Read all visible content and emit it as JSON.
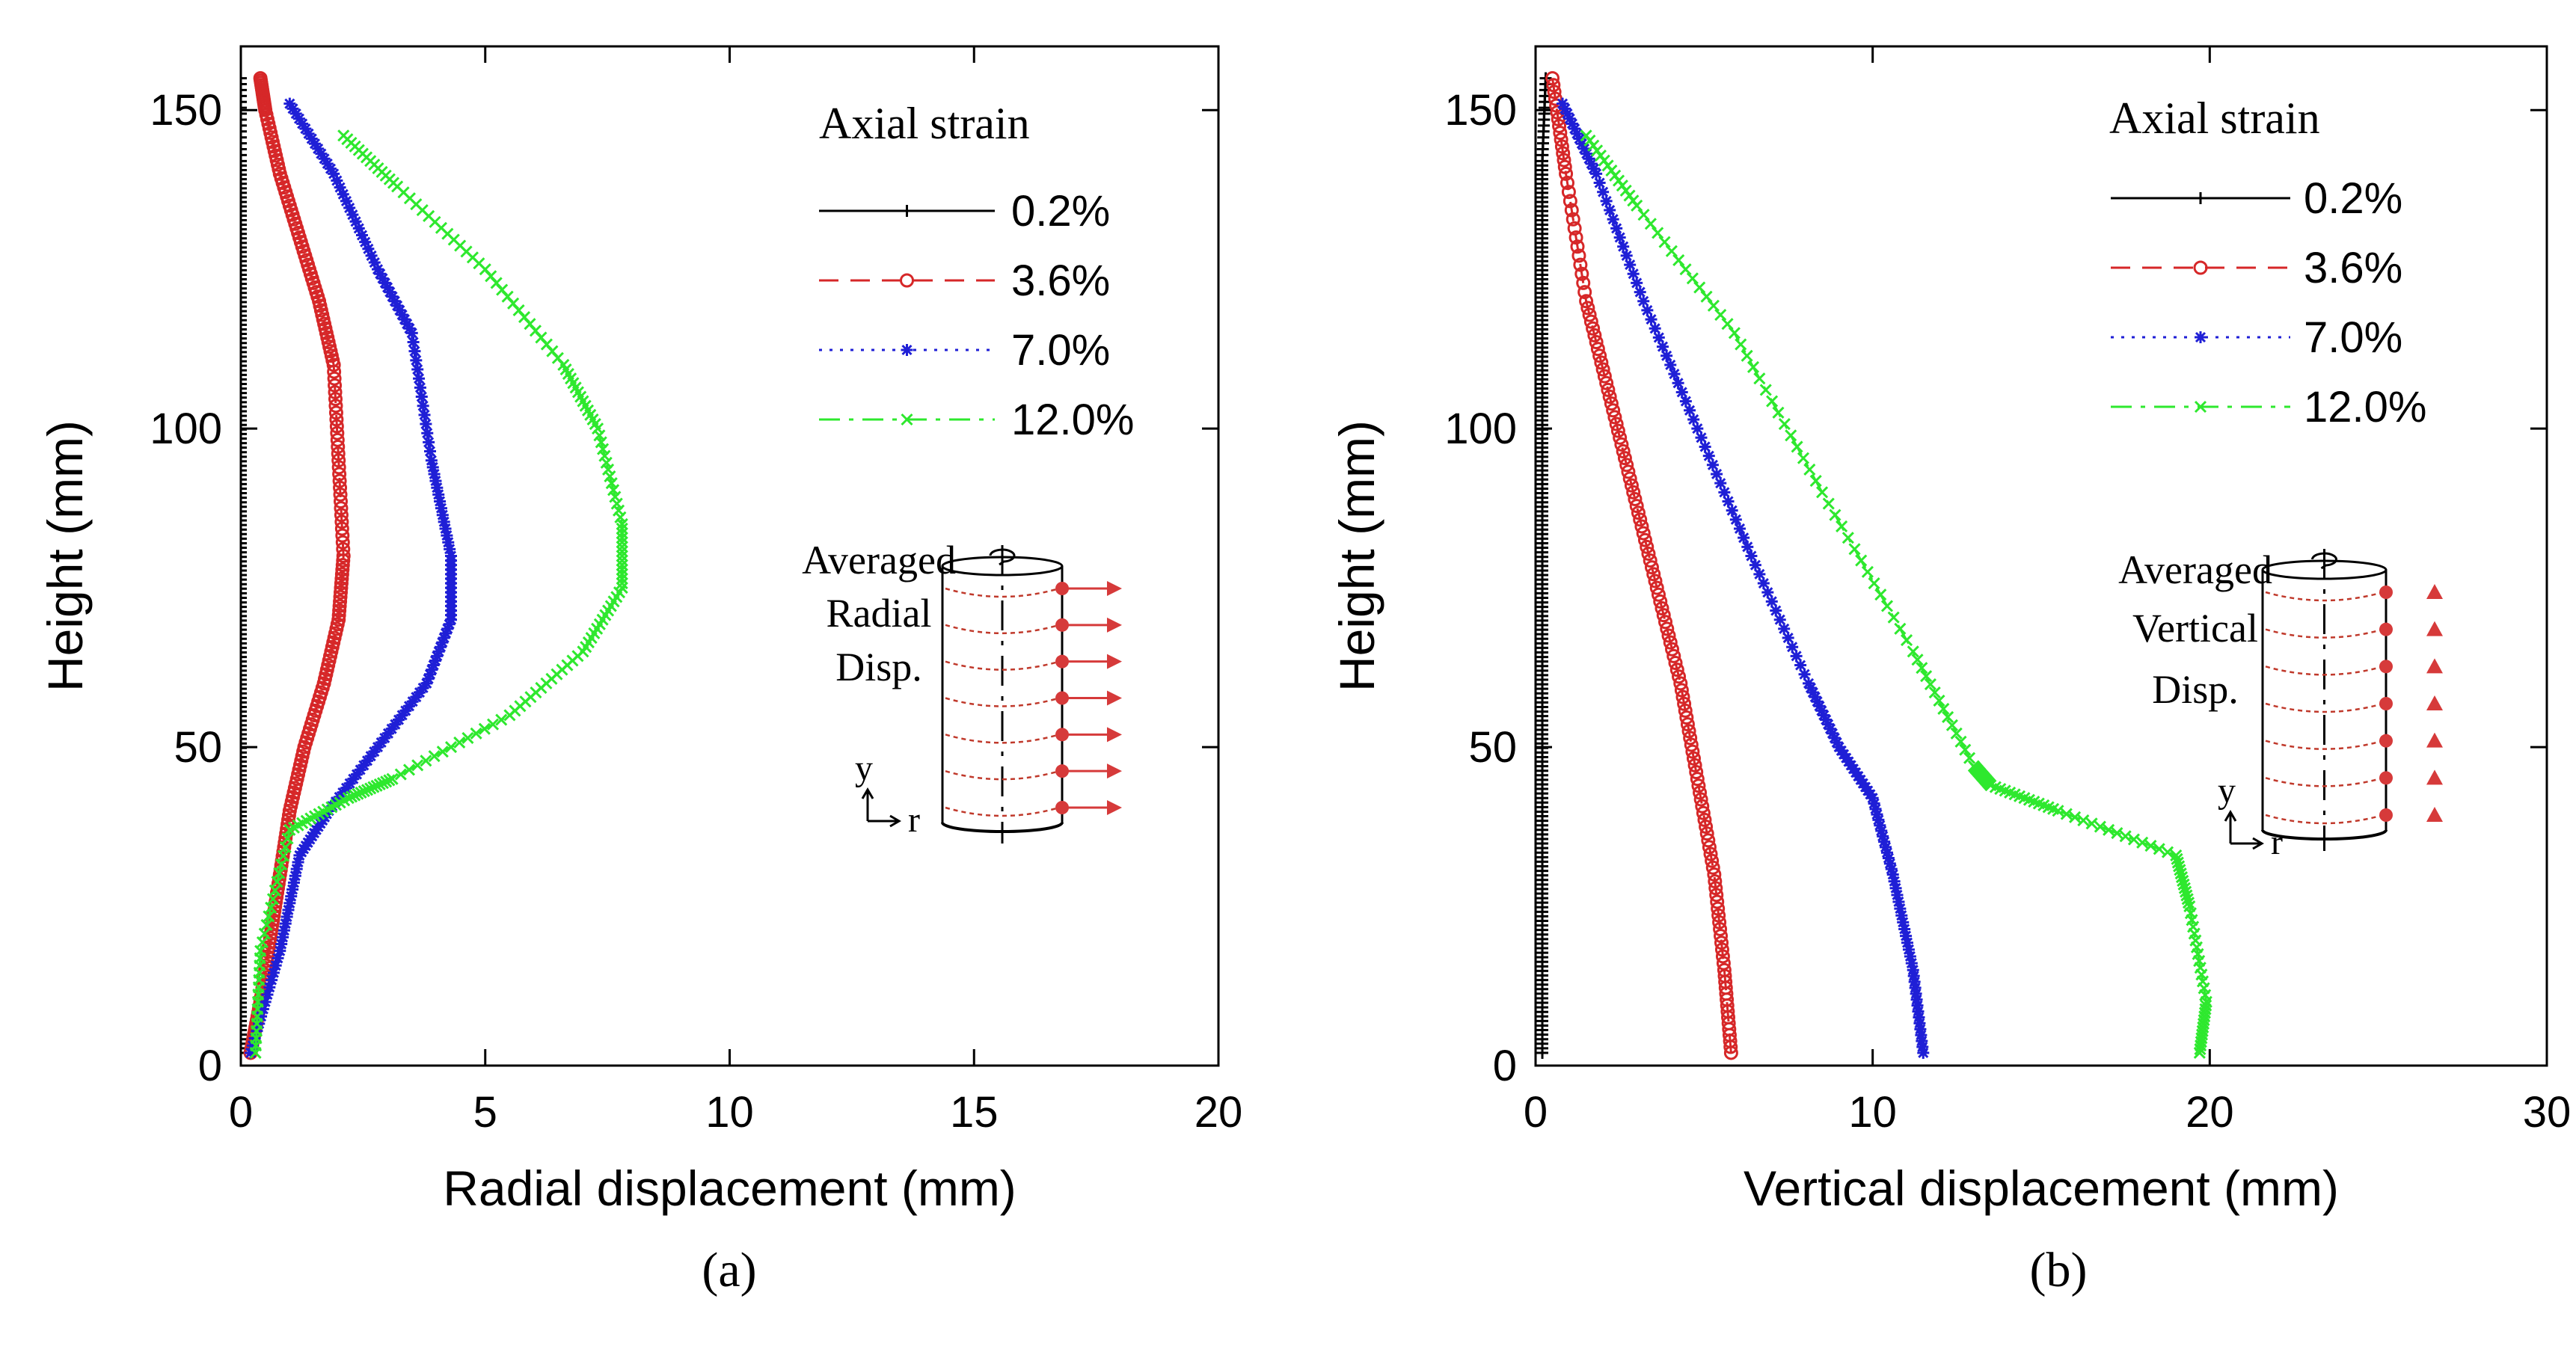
{
  "chart_data": [
    {
      "type": "line",
      "panel_label": "(a)",
      "xlabel": "Radial displacement (mm)",
      "ylabel": "Height (mm)",
      "xlim": [
        0,
        20
      ],
      "ylim": [
        0,
        160
      ],
      "xticks": [
        0,
        5,
        10,
        15,
        20
      ],
      "yticks": [
        0,
        50,
        100,
        150
      ],
      "grid": false,
      "legend_title": "Axial strain",
      "legend_position": "top-right",
      "series": [
        {
          "name": "0.2%",
          "color": "#000000",
          "style": "solid",
          "marker": "plus",
          "x": [
            0,
            0,
            0,
            0,
            0,
            0,
            0,
            0,
            0,
            0,
            0,
            0,
            0,
            0,
            0,
            0
          ],
          "y": [
            2,
            12,
            22,
            32,
            42,
            52,
            62,
            72,
            82,
            92,
            102,
            112,
            122,
            132,
            142,
            155
          ]
        },
        {
          "name": "3.6%",
          "color": "#d62728",
          "style": "dashed",
          "marker": "circle",
          "x": [
            0.2,
            0.4,
            0.6,
            0.8,
            1.0,
            1.3,
            1.7,
            2.0,
            2.1,
            2.0,
            1.9,
            1.6,
            1.2,
            0.8,
            0.5,
            0.4
          ],
          "y": [
            2,
            10,
            20,
            30,
            40,
            50,
            60,
            70,
            80,
            95,
            110,
            120,
            130,
            140,
            150,
            155
          ]
        },
        {
          "name": "7.0%",
          "color": "#1f1fd6",
          "style": "dotted",
          "marker": "asterisk",
          "x": [
            0.2,
            0.8,
            1.2,
            1.8,
            2.8,
            3.8,
            4.3,
            4.3,
            3.9,
            3.5,
            2.8,
            1.9,
            1.0
          ],
          "y": [
            2,
            18,
            33,
            40,
            50,
            60,
            70,
            80,
            95,
            115,
            125,
            140,
            151
          ]
        },
        {
          "name": "12.0%",
          "color": "#2ee82e",
          "style": "dashdot",
          "marker": "cross",
          "x": [
            0.3,
            0.4,
            1.0,
            2.2,
            3.1,
            5.5,
            7.0,
            7.8,
            7.8,
            7.3,
            6.6,
            5.0,
            3.2,
            2.1
          ],
          "y": [
            2,
            18,
            37,
            42,
            45,
            55,
            65,
            75,
            85,
            100,
            110,
            125,
            138,
            146
          ]
        }
      ],
      "inset": {
        "lines": [
          "Averaged",
          "Radial",
          "Disp."
        ],
        "axis_y": "y",
        "axis_r": "r"
      }
    },
    {
      "type": "line",
      "panel_label": "(b)",
      "xlabel": "Vertical displacement (mm)",
      "ylabel": "Height (mm)",
      "xlim": [
        0,
        30
      ],
      "ylim": [
        0,
        160
      ],
      "xticks": [
        0,
        10,
        20,
        30
      ],
      "yticks": [
        0,
        50,
        100,
        150
      ],
      "grid": false,
      "legend_title": "Axial strain",
      "legend_position": "top-right",
      "series": [
        {
          "name": "0.2%",
          "color": "#000000",
          "style": "solid",
          "marker": "plus",
          "x": [
            0.2,
            0.2,
            0.2,
            0.2,
            0.2,
            0.2,
            0.2,
            0.2,
            0.2,
            0.2,
            0.2,
            0.2,
            0.2,
            0.2,
            0.2,
            0.3
          ],
          "y": [
            2,
            12,
            22,
            32,
            42,
            52,
            62,
            72,
            82,
            92,
            102,
            112,
            122,
            132,
            142,
            155
          ]
        },
        {
          "name": "3.6%",
          "color": "#d62728",
          "style": "dashed",
          "marker": "circle",
          "x": [
            5.8,
            5.6,
            5.3,
            4.8,
            4.3,
            3.6,
            2.9,
            2.2,
            1.5,
            0.9,
            0.5
          ],
          "y": [
            2,
            15,
            30,
            45,
            60,
            75,
            90,
            105,
            120,
            140,
            155
          ]
        },
        {
          "name": "7.0%",
          "color": "#1f1fd6",
          "style": "dotted",
          "marker": "asterisk",
          "x": [
            11.5,
            11.2,
            10.6,
            10.0,
            9.0,
            8.1,
            6.4,
            4.8,
            3.2,
            1.8,
            0.8
          ],
          "y": [
            2,
            15,
            30,
            42,
            50,
            60,
            80,
            100,
            120,
            140,
            151
          ]
        },
        {
          "name": "12.0%",
          "color": "#2ee82e",
          "style": "dashdot",
          "marker": "cross",
          "x": [
            19.7,
            19.9,
            19.4,
            19.0,
            15.5,
            13.5,
            13.0,
            11.2,
            8.5,
            5.9,
            3.0,
            1.5
          ],
          "y": [
            2,
            10,
            25,
            33,
            40,
            44,
            47,
            65,
            90,
            115,
            135,
            146
          ]
        }
      ],
      "inset": {
        "lines": [
          "Averaged",
          "Vertical",
          "Disp."
        ],
        "axis_y": "y",
        "axis_r": "r"
      }
    }
  ]
}
